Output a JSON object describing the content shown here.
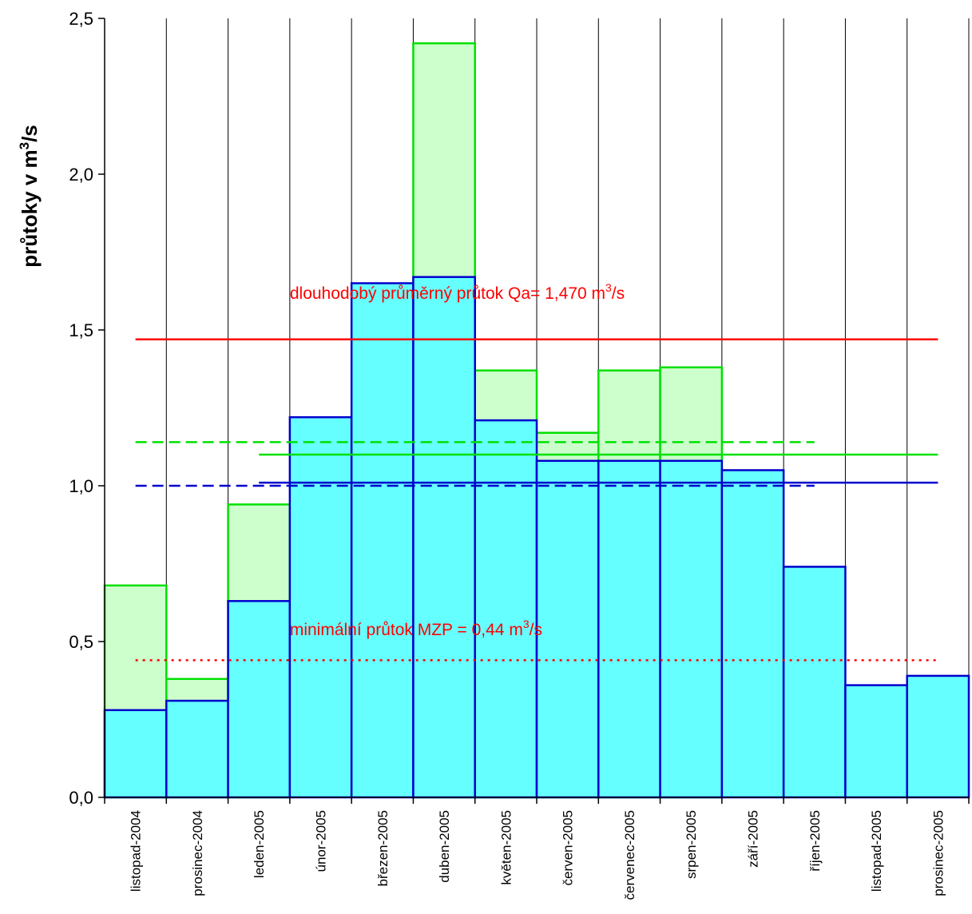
{
  "chart_data": {
    "type": "bar",
    "ylabel": "průtoky v m",
    "ylabel_sup": "3",
    "ylabel_tail": "/s",
    "ylim": [
      0,
      2.5
    ],
    "yticks": [
      "0,0",
      "0,5",
      "1,0",
      "1,5",
      "2,0",
      "2,5"
    ],
    "grid": "vertical",
    "categories": [
      "listopad-2004",
      "prosinec-2004",
      "leden-2005",
      "únor-2005",
      "březen-2005",
      "duben-2005",
      "květen-2005",
      "červen-2005",
      "červenec-2005",
      "srpen-2005",
      "září-2005",
      "říjen-2005",
      "listopad-2005",
      "prosinec-2005"
    ],
    "series": [
      {
        "color": "#00e000",
        "fill": "#ccffcc",
        "values": [
          0.68,
          0.38,
          0.94,
          null,
          null,
          2.42,
          1.37,
          1.17,
          1.37,
          1.38,
          null,
          null,
          null,
          null
        ]
      },
      {
        "color": "#0000cc",
        "fill": "#66ffff",
        "values": [
          0.28,
          0.31,
          0.63,
          1.22,
          1.65,
          1.67,
          1.21,
          1.08,
          1.08,
          1.08,
          1.05,
          0.74,
          0.36,
          0.39
        ]
      }
    ],
    "reference_lines": [
      {
        "value": 1.47,
        "color": "#ff0000",
        "style": "solid",
        "from_index": 0,
        "to_index": 13
      },
      {
        "value": 1.14,
        "color": "#00e000",
        "style": "dashed",
        "from_index": 0,
        "to_index": 11
      },
      {
        "value": 1.1,
        "color": "#00e000",
        "style": "solid",
        "from_index": 2,
        "to_index": 13
      },
      {
        "value": 1.0,
        "color": "#0000cc",
        "style": "dashed",
        "from_index": 0,
        "to_index": 11
      },
      {
        "value": 1.01,
        "color": "#0000cc",
        "style": "solid",
        "from_index": 2,
        "to_index": 13
      },
      {
        "value": 0.44,
        "color": "#ff0000",
        "style": "dotted",
        "from_index": 0,
        "to_index": 13
      }
    ],
    "annotations": [
      {
        "text": "dlouhodobý průměrný  průtok Qa= 1,470 m",
        "sup": "3",
        "tail": "/s",
        "color": "#ff0000",
        "y": 1.6,
        "category_index": 3
      },
      {
        "text": "minimální průtok MZP = 0,44  m",
        "sup": "3",
        "tail": "/s",
        "color": "#ff0000",
        "y": 0.52,
        "category_index": 3
      }
    ]
  }
}
